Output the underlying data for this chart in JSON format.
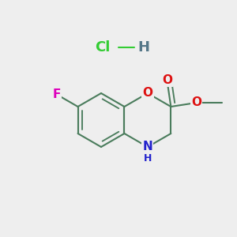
{
  "background_color": "#eeeeee",
  "bond_color": "#4a7c5c",
  "bond_width": 1.5,
  "atom_colors": {
    "F": "#dd00bb",
    "O": "#dd1111",
    "N": "#2222cc",
    "Cl": "#33cc33",
    "H_hcl": "#557788"
  },
  "font_size_atom": 11,
  "font_size_hcl": 13,
  "figsize": [
    3.0,
    3.0
  ],
  "dpi": 100
}
